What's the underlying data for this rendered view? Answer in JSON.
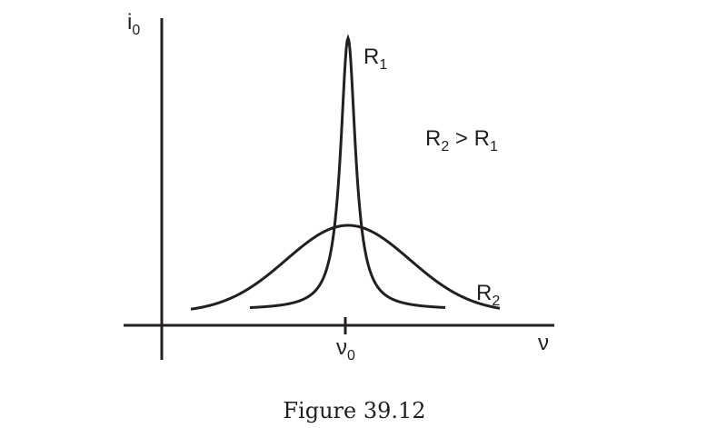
{
  "figure": {
    "caption": "Figure 39.12",
    "y_axis_label": {
      "main": "i",
      "sub": "0"
    },
    "x_axis_label": "ν",
    "tick_label": {
      "main": "ν",
      "sub": "0"
    },
    "curves": [
      {
        "label": {
          "main": "R",
          "sub": "1"
        },
        "shape": "sharp narrow peak"
      },
      {
        "label": {
          "main": "R",
          "sub": "2"
        },
        "shape": "broad low peak"
      }
    ],
    "relation": {
      "left_main": "R",
      "left_sub": "2",
      "op": " > ",
      "right_main": "R",
      "right_sub": "1"
    },
    "line_color": "#231f20"
  }
}
